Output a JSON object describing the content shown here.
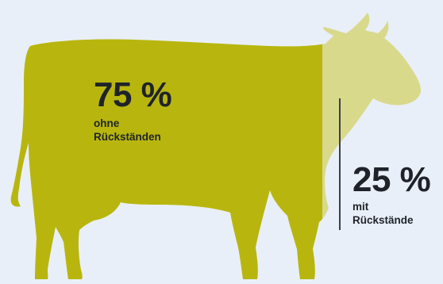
{
  "chart_data": {
    "type": "pie",
    "categories": [
      "ohne Rückständen",
      "mit Rückstände"
    ],
    "values": [
      75,
      25
    ],
    "title": "",
    "segments": [
      {
        "value": "75 %",
        "line1": "ohne",
        "line2": "Rückständen",
        "color": "#b8b60e"
      },
      {
        "value": "25 %",
        "line1": "mit",
        "line2": "Rückstände",
        "color": "#d9d98c"
      }
    ]
  },
  "colors": {
    "background": "#e9eff8",
    "text": "#1f2329",
    "divider": "#3a3f47"
  }
}
